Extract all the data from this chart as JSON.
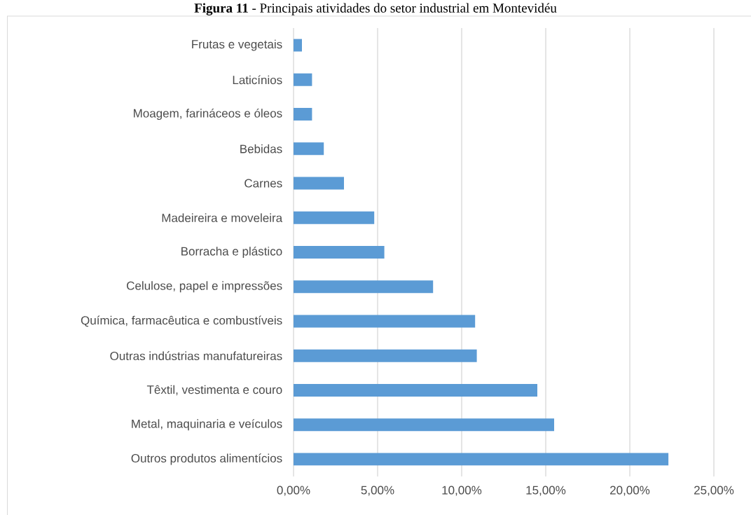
{
  "chart_data": {
    "type": "bar",
    "orientation": "horizontal",
    "title": "**Figura 11** - Principais atividades do setor industrial em Montevidéu",
    "categories": [
      "Frutas e vegetais",
      "Laticínios",
      "Moagem, farináceos e óleos",
      "Bebidas",
      "Carnes",
      "Madeireira e moveleira",
      "Borracha e plástico",
      "Celulose, papel e impressões",
      "Química, farmacêutica e combustíveis",
      "Outras indústrias manufatureiras",
      "Têxtil, vestimenta e couro",
      "Metal, maquinaria e veículos",
      "Outros produtos alimentícios"
    ],
    "values": [
      0.5,
      1.1,
      1.1,
      1.8,
      3.0,
      4.8,
      5.4,
      8.3,
      10.8,
      10.9,
      14.5,
      15.5,
      22.3
    ],
    "color": "#5b9bd5",
    "xlim": [
      0,
      25
    ],
    "xticks": [
      {
        "value": 0,
        "label": "0,00%"
      },
      {
        "value": 5,
        "label": "5,00%"
      },
      {
        "value": 10,
        "label": "10,00%"
      },
      {
        "value": 15,
        "label": "15,00%"
      },
      {
        "value": 20,
        "label": "20,00%"
      },
      {
        "value": 25,
        "label": "25,00%"
      }
    ],
    "grid": "x"
  }
}
